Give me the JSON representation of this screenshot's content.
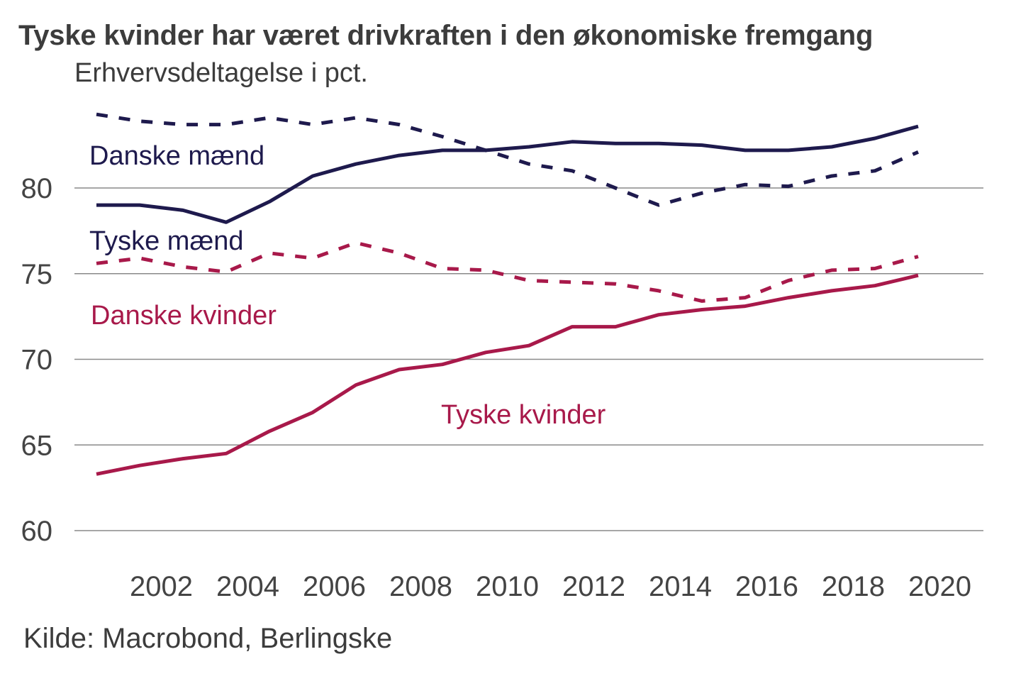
{
  "chart_data": {
    "type": "line",
    "title": "Tyske kvinder har været drivkraften i den økonomiske fremgang",
    "subtitle": "Erhvervsdeltagelse i pct.",
    "source": "Kilde: Macrobond, Berlingske",
    "xlabel": "",
    "ylabel": "",
    "x": [
      2000,
      2001,
      2002,
      2003,
      2004,
      2005,
      2006,
      2007,
      2008,
      2009,
      2010,
      2011,
      2012,
      2013,
      2014,
      2015,
      2016,
      2017,
      2018,
      2019
    ],
    "xlim": [
      2000,
      2021
    ],
    "ylim": [
      60,
      85
    ],
    "yticks": [
      60,
      65,
      70,
      75,
      80
    ],
    "xticks": [
      "2002",
      "2004",
      "2006",
      "2008",
      "2010",
      "2012",
      "2014",
      "2016",
      "2018",
      "2020"
    ],
    "grid": true,
    "legend": "inline labels",
    "series": [
      {
        "name": "Danske mænd",
        "color": "#1e1a4d",
        "style": "dashed",
        "values": [
          84.3,
          83.9,
          83.7,
          83.7,
          84.1,
          83.7,
          84.1,
          83.7,
          83.0,
          82.2,
          81.4,
          81.0,
          80.0,
          79.0,
          79.7,
          80.2,
          80.1,
          80.7,
          81.0,
          82.1
        ]
      },
      {
        "name": "Tyske mænd",
        "color": "#1e1a4d",
        "style": "solid",
        "values": [
          79.0,
          79.0,
          78.7,
          78.0,
          79.2,
          80.7,
          81.4,
          81.9,
          82.2,
          82.2,
          82.4,
          82.7,
          82.6,
          82.6,
          82.5,
          82.2,
          82.2,
          82.4,
          82.9,
          83.6
        ]
      },
      {
        "name": "Danske kvinder",
        "color": "#a8194a",
        "style": "dashed",
        "values": [
          75.6,
          75.9,
          75.4,
          75.1,
          76.2,
          75.9,
          76.8,
          76.2,
          75.3,
          75.2,
          74.6,
          74.5,
          74.4,
          74.0,
          73.4,
          73.6,
          74.6,
          75.2,
          75.3,
          76.0
        ]
      },
      {
        "name": "Tyske kvinder",
        "color": "#a8194a",
        "style": "solid",
        "values": [
          63.3,
          63.8,
          64.2,
          64.5,
          65.8,
          66.9,
          68.5,
          69.4,
          69.7,
          70.4,
          70.8,
          71.9,
          71.9,
          72.6,
          72.9,
          73.1,
          73.6,
          74.0,
          74.3,
          74.9
        ]
      }
    ]
  }
}
